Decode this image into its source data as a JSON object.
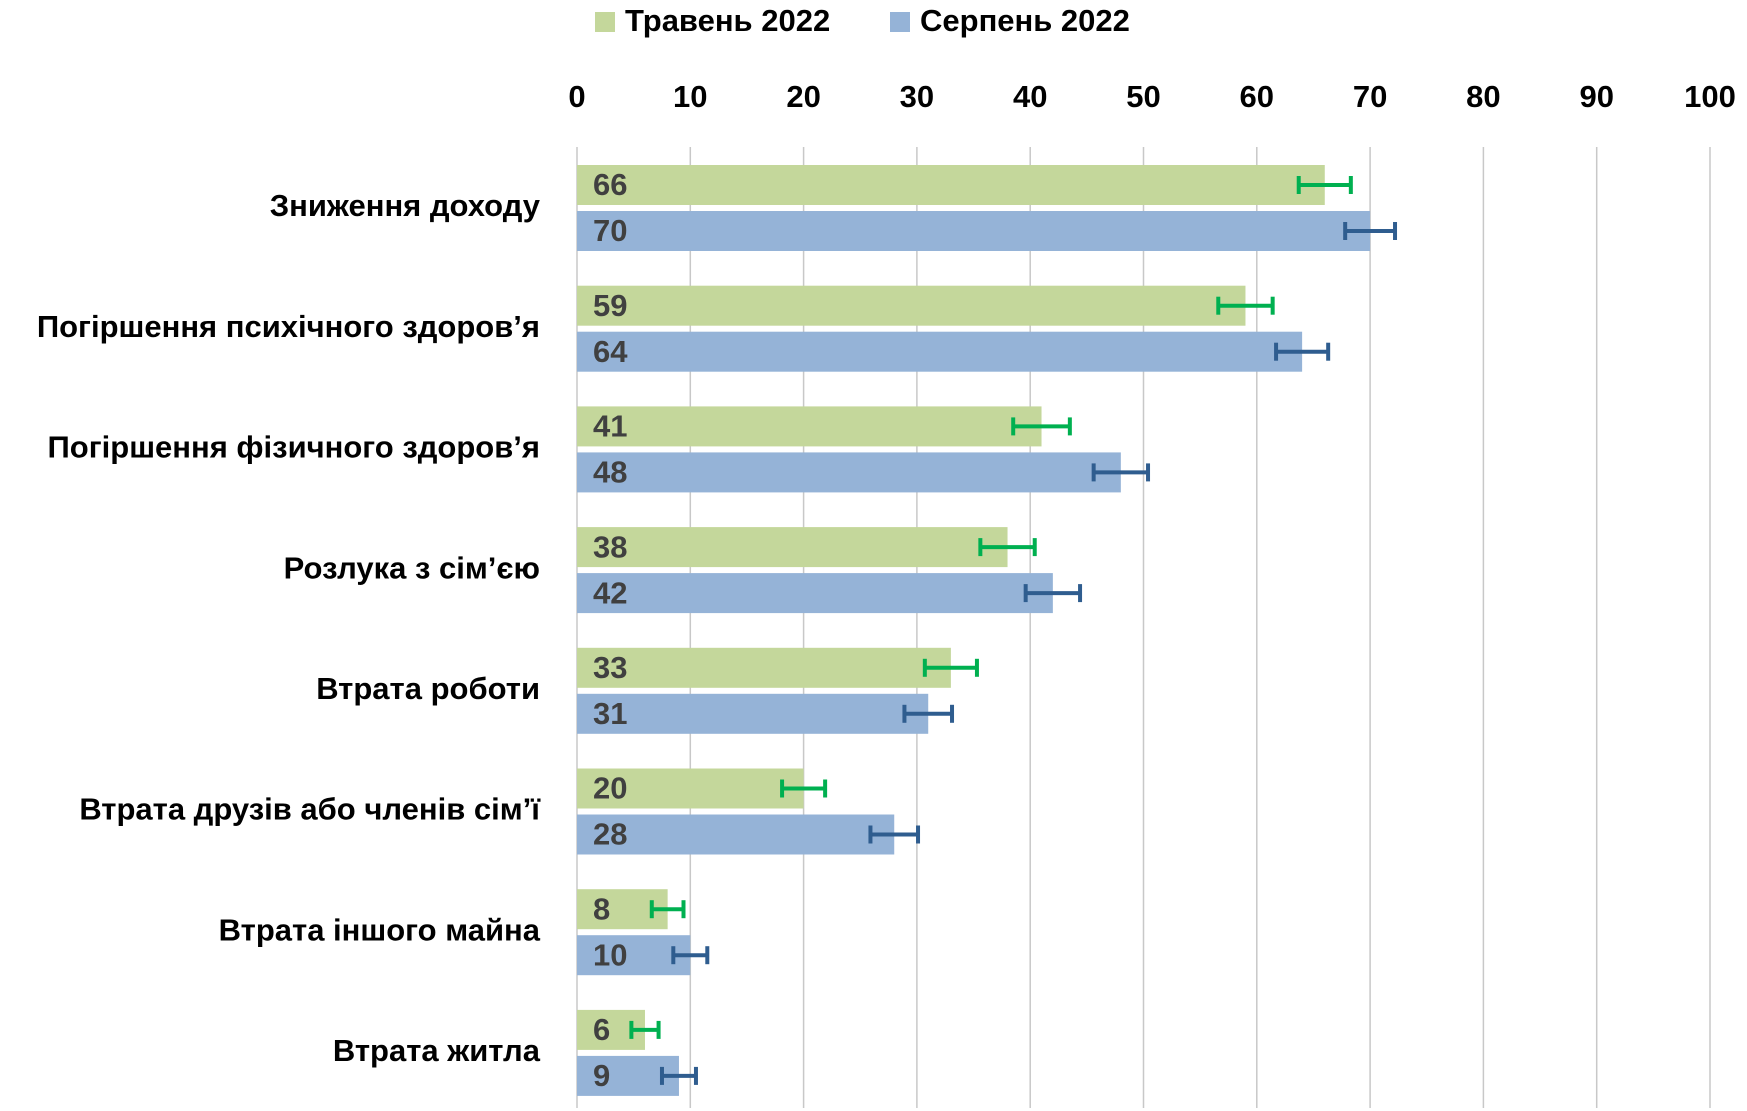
{
  "chart_data": {
    "type": "bar",
    "orientation": "horizontal",
    "categories": [
      "Зниження доходу",
      "Погіршення психічного здоров’я",
      "Погіршення фізичного здоров’я",
      "Розлука з сім’єю",
      "Втрата роботи",
      "Втрата друзів або членів сім’ї",
      "Втрата іншого майна",
      "Втрата житла"
    ],
    "series": [
      {
        "name": "Травень 2022",
        "color": "#c4d79b",
        "error_color": "#00b050",
        "values": [
          66,
          59,
          41,
          38,
          33,
          20,
          8,
          6
        ],
        "errors": [
          2.3,
          2.4,
          2.5,
          2.4,
          2.3,
          1.9,
          1.4,
          1.2
        ]
      },
      {
        "name": "Серпень 2022",
        "color": "#95b3d7",
        "error_color": "#2f5d8f",
        "values": [
          70,
          64,
          48,
          42,
          31,
          28,
          10,
          9
        ],
        "errors": [
          2.2,
          2.3,
          2.4,
          2.4,
          2.1,
          2.1,
          1.5,
          1.5
        ]
      }
    ],
    "xlim": [
      0,
      100
    ],
    "xticks": [
      0,
      10,
      20,
      30,
      40,
      50,
      60,
      70,
      80,
      90,
      100
    ],
    "grid": true,
    "legend": "top"
  }
}
